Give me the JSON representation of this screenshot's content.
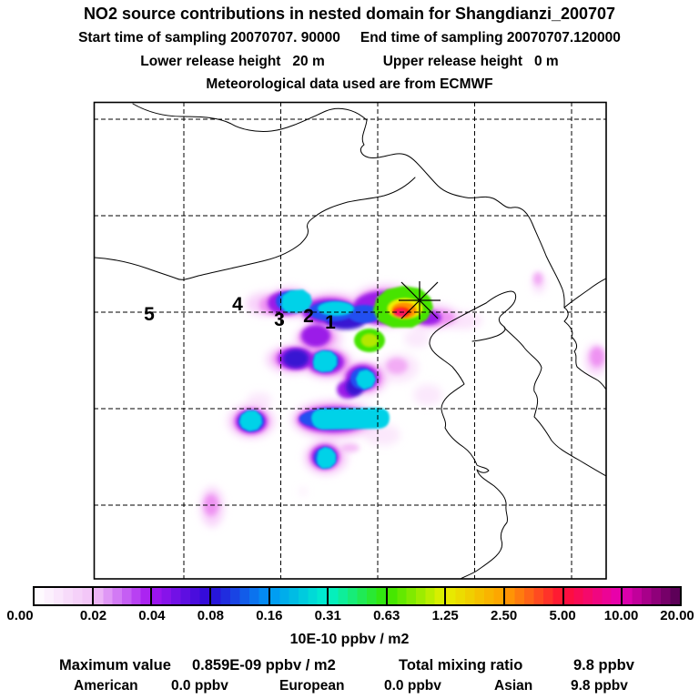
{
  "header": {
    "title": "NO2 source contributions in nested domain for Shangdianzi_200707",
    "start_label": "Start time of sampling 20070707. 90000",
    "end_label": "End time of sampling 20070707.120000",
    "lower_release": "Lower release height   20 m",
    "upper_release": "Upper release height   0 m",
    "met_source": "Meteorological data used are from ECMWF"
  },
  "map": {
    "receptor_station": "Shangdianzi",
    "trajectory_markers": [
      {
        "label": "1"
      },
      {
        "label": "2"
      },
      {
        "label": "3"
      },
      {
        "label": "4"
      },
      {
        "label": "5"
      }
    ]
  },
  "colorbar": {
    "unit_label": "10E-10 ppbv / m2",
    "ticks": [
      "0.00",
      "0.02",
      "0.04",
      "0.08",
      "0.16",
      "0.31",
      "0.63",
      "1.25",
      "2.50",
      "5.00",
      "10.00",
      "20.00"
    ],
    "stop_colors": [
      "#ffffff",
      "#f2c2f7",
      "#a516f0",
      "#2b0ad7",
      "#0096f5",
      "#00f0cd",
      "#37e600",
      "#e6f000",
      "#ffa000",
      "#ff0f37",
      "#e600b4",
      "#500050"
    ]
  },
  "stats": {
    "maximum": {
      "label": "Maximum value",
      "value": "0.859E-09 ppbv / m2"
    },
    "total": {
      "label": "Total mixing ratio",
      "value": "9.8 ppbv"
    },
    "regions": [
      {
        "label": "American",
        "value": "0.0 ppbv"
      },
      {
        "label": "European",
        "value": "0.0 ppbv"
      },
      {
        "label": "Asian",
        "value": "9.8 ppbv"
      }
    ]
  },
  "chart_data": {
    "type": "heatmap",
    "title": "NO2 source contributions in nested domain for Shangdianzi_200707",
    "colorbar_scale_10E-10_ppbv_per_m2": [
      0.0,
      0.02,
      0.04,
      0.08,
      0.16,
      0.31,
      0.63,
      1.25,
      2.5,
      5.0,
      10.0,
      20.0
    ],
    "maximum_value": "0.859E-09 ppbv / m2",
    "total_mixing_ratio_ppbv": 9.8,
    "regional_contributions_ppbv": {
      "American": 0.0,
      "European": 0.0,
      "Asian": 9.8
    },
    "legend_position": "bottom",
    "grid": "dashed lat-lon graticule, no tick labels"
  }
}
